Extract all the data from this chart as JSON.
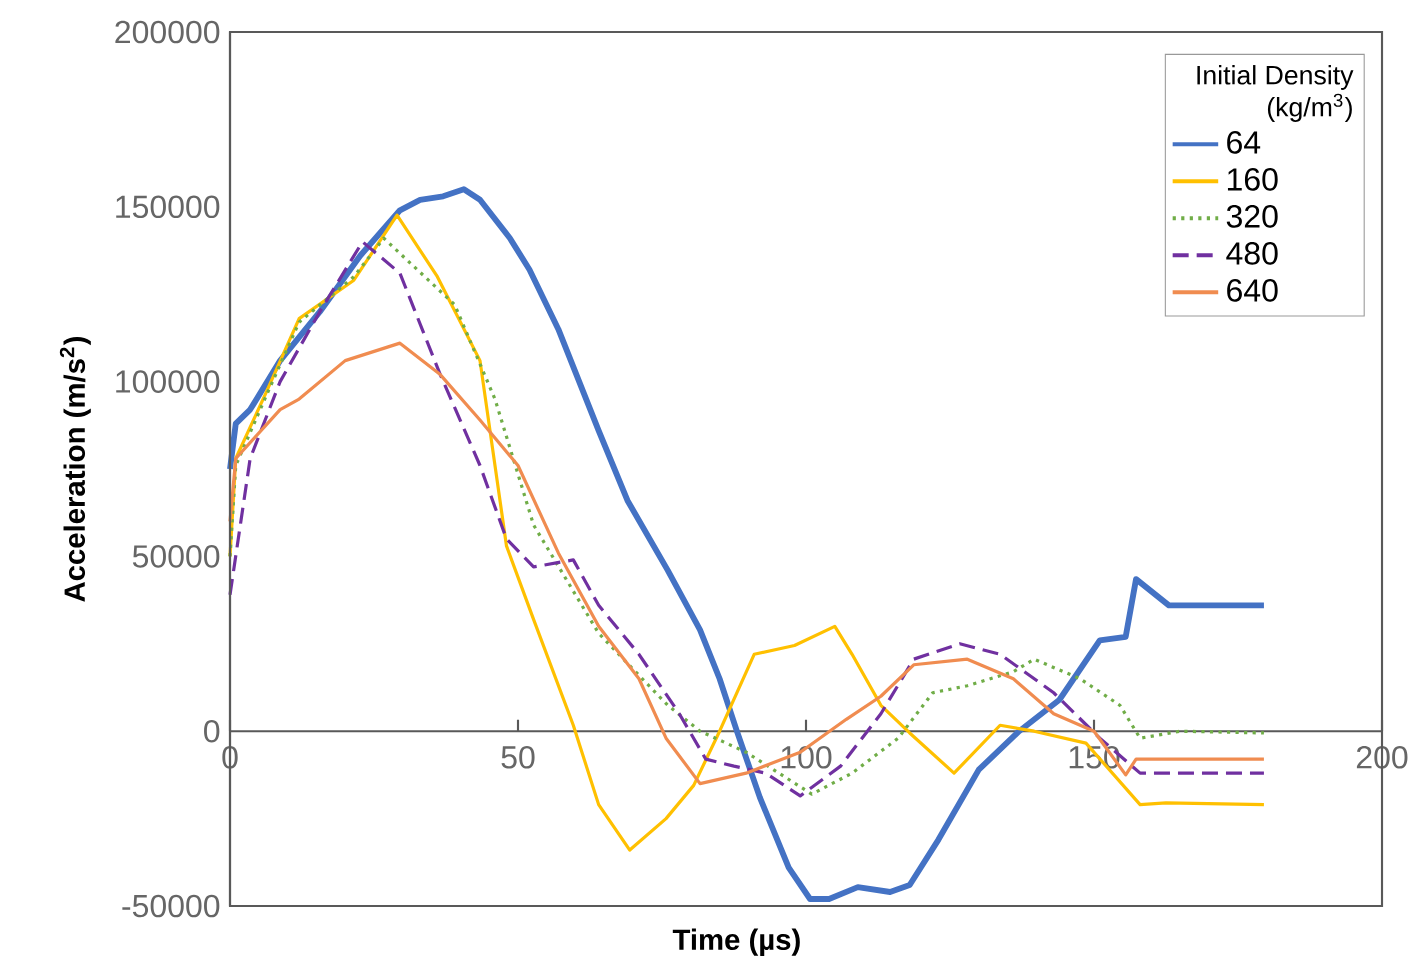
{
  "chart_data": {
    "type": "line",
    "xlabel": "Time (µs)",
    "ylabel": "Acceleration (m/s$^{2}$)",
    "legend_title": "Initial Density (kg/m$^{3}$)",
    "xlim": [
      0,
      200
    ],
    "xticks": [
      0,
      50,
      100,
      150,
      200
    ],
    "ylim": [
      -50000,
      200000
    ],
    "yticks": [
      -50000,
      0,
      50000,
      100000,
      150000,
      200000
    ],
    "grid": false,
    "legend": "top right",
    "series": [
      {
        "name": "64",
        "color": "#4472c4",
        "line_style": "solid",
        "x": [
          0,
          1,
          3.5,
          8.7,
          15.6,
          22.6,
          29.5,
          33,
          37,
          40.6,
          43.4,
          48.6,
          52,
          57,
          64,
          69,
          76,
          81.6,
          85,
          88,
          92,
          97,
          100.7,
          104,
          109,
          114.6,
          118,
          123,
          130,
          137,
          144,
          151,
          155.5,
          157.3,
          163,
          179.5
        ],
        "values": [
          75000,
          88000,
          92000,
          106000,
          120000,
          136000,
          149000,
          152000,
          153000,
          155000,
          152000,
          141000,
          132000,
          115000,
          86000,
          66000,
          46000,
          29000,
          15000,
          0,
          -19000,
          -39000,
          -48000,
          -48000,
          -44600,
          -46000,
          -44000,
          -31000,
          -11000,
          0,
          9000,
          26000,
          27000,
          43500,
          36000,
          36000
        ]
      },
      {
        "name": "160",
        "color": "#ffc000",
        "line_style": "solid",
        "x": [
          0,
          1,
          6.3,
          12,
          21.5,
          29,
          36,
          43.4,
          48,
          52.7,
          59.6,
          64,
          69.4,
          75.7,
          80.5,
          85,
          91,
          98,
          105,
          108,
          113,
          118,
          125.7,
          133.7,
          139.6,
          148.6,
          158,
          162.5,
          179.5
        ],
        "values": [
          50000,
          78000,
          97000,
          118000,
          129000,
          147600,
          130000,
          106000,
          53000,
          32000,
          1700,
          -21000,
          -34000,
          -25000,
          -15500,
          0,
          22000,
          24500,
          30000,
          22000,
          7400,
          -500,
          -12000,
          1700,
          0,
          -3400,
          -21000,
          -20500,
          -21000
        ]
      },
      {
        "name": "320",
        "color": "#70ad47",
        "line_style": "dotted",
        "x": [
          0,
          1,
          6.3,
          12,
          21.5,
          26.7,
          39,
          46,
          52.7,
          64,
          76,
          81.6,
          89.6,
          101,
          108,
          116,
          122,
          128,
          136,
          139.6,
          147.6,
          154.5,
          158,
          165,
          179.5
        ],
        "values": [
          50000,
          76000,
          96000,
          117000,
          130000,
          141000,
          122000,
          95000,
          59000,
          28000,
          7400,
          0,
          -6000,
          -18000,
          -12000,
          -2000,
          11000,
          13000,
          17000,
          20600,
          15000,
          7400,
          -2000,
          0,
          -500
        ]
      },
      {
        "name": "480",
        "color": "#7030a0",
        "line_style": "dashed",
        "x": [
          0,
          3.5,
          8.7,
          15.6,
          23,
          29.5,
          36.5,
          43.4,
          48,
          52.7,
          59.6,
          64,
          71,
          78,
          82.6,
          87.5,
          93,
          99,
          106,
          113,
          118.7,
          126.7,
          133.7,
          143,
          151,
          158,
          179.5
        ],
        "values": [
          39000,
          78000,
          100000,
          120000,
          140000,
          131000,
          102000,
          76000,
          55000,
          47000,
          49000,
          36000,
          22000,
          5000,
          -8000,
          -10000,
          -12000,
          -18500,
          -10000,
          5000,
          20600,
          25000,
          22000,
          11000,
          -2000,
          -12000,
          -12000
        ]
      },
      {
        "name": "640",
        "color": "#f08c50",
        "line_style": "solid",
        "x": [
          0,
          1,
          8.7,
          12,
          20,
          29.5,
          36.5,
          43.4,
          50,
          57,
          64,
          71,
          75.7,
          81.6,
          89.6,
          99,
          107,
          113,
          118.7,
          128,
          136,
          143,
          150,
          155.5,
          157.3,
          179.5
        ],
        "values": [
          60000,
          78000,
          92000,
          95000,
          106000,
          111000,
          102000,
          89000,
          76000,
          51000,
          30000,
          15000,
          -2000,
          -15000,
          -12000,
          -6000,
          3400,
          10000,
          19000,
          20600,
          15000,
          5000,
          0,
          -12500,
          -8000,
          -8000
        ]
      }
    ]
  }
}
